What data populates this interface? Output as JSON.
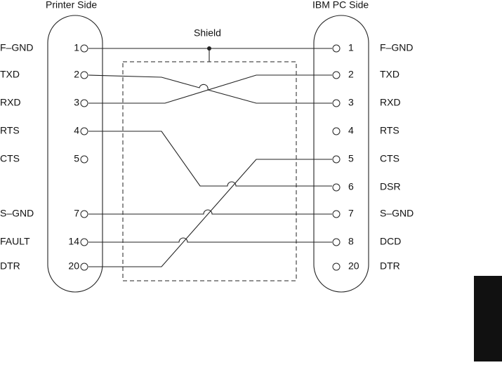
{
  "header": {
    "left_title": "Printer Side",
    "right_title": "IBM PC Side"
  },
  "shield_label": "Shield",
  "left_pins": [
    {
      "signal": "F–GND",
      "pin": "1"
    },
    {
      "signal": "TXD",
      "pin": "2"
    },
    {
      "signal": "RXD",
      "pin": "3"
    },
    {
      "signal": "RTS",
      "pin": "4"
    },
    {
      "signal": "CTS",
      "pin": "5"
    },
    {
      "signal": "S–GND",
      "pin": "7"
    },
    {
      "signal": "FAULT",
      "pin": "14"
    },
    {
      "signal": "DTR",
      "pin": "20"
    }
  ],
  "right_pins": [
    {
      "signal": "F–GND",
      "pin": "1"
    },
    {
      "signal": "TXD",
      "pin": "2"
    },
    {
      "signal": "RXD",
      "pin": "3"
    },
    {
      "signal": "RTS",
      "pin": "4"
    },
    {
      "signal": "CTS",
      "pin": "5"
    },
    {
      "signal": "DSR",
      "pin": "6"
    },
    {
      "signal": "S–GND",
      "pin": "7"
    },
    {
      "signal": "DCD",
      "pin": "8"
    },
    {
      "signal": "DTR",
      "pin": "20"
    }
  ]
}
